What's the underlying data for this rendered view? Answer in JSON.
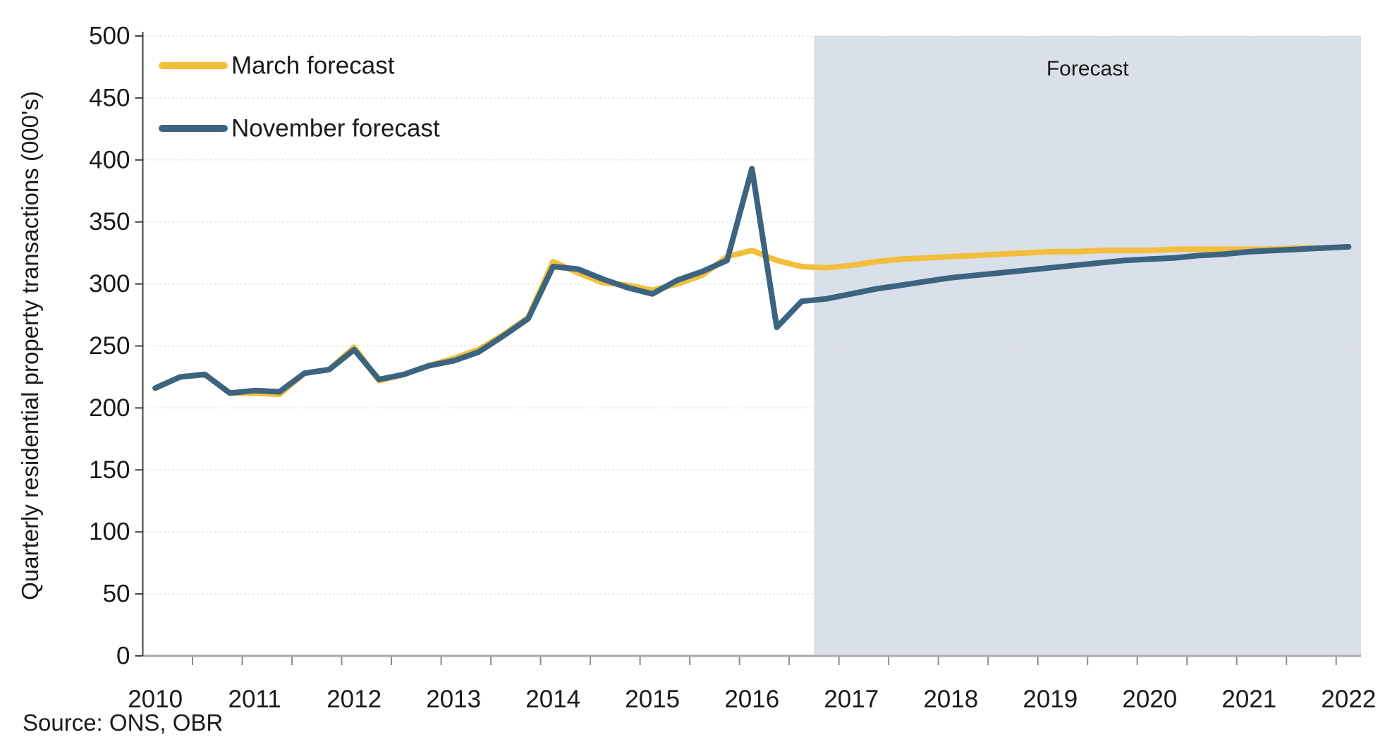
{
  "chart_data": {
    "type": "line",
    "title": "",
    "xlabel": "",
    "ylabel": "Quarterly residential property transactions (000's)",
    "ylim": [
      0,
      500
    ],
    "y_tick_step": 50,
    "y_tick_labels": [
      "0",
      "50",
      "100",
      "150",
      "200",
      "250",
      "300",
      "350",
      "400",
      "450",
      "500"
    ],
    "x_year_labels": [
      "2010",
      "2011",
      "2012",
      "2013",
      "2014",
      "2015",
      "2016",
      "2017",
      "2018",
      "2019",
      "2020",
      "2021",
      "2022"
    ],
    "x": [
      2010.0,
      2010.25,
      2010.5,
      2010.75,
      2011.0,
      2011.25,
      2011.5,
      2011.75,
      2012.0,
      2012.25,
      2012.5,
      2012.75,
      2013.0,
      2013.25,
      2013.5,
      2013.75,
      2014.0,
      2014.25,
      2014.5,
      2014.75,
      2015.0,
      2015.25,
      2015.5,
      2015.75,
      2016.0,
      2016.25,
      2016.5,
      2016.75,
      2017.0,
      2017.25,
      2017.5,
      2017.75,
      2018.0,
      2018.25,
      2018.5,
      2018.75,
      2019.0,
      2019.25,
      2019.5,
      2019.75,
      2020.0,
      2020.25,
      2020.5,
      2020.75,
      2021.0,
      2021.25,
      2021.5,
      2021.75,
      2022.0
    ],
    "series": [
      {
        "name": "March forecast",
        "color": "#f2be3c",
        "values": [
          216,
          225,
          227,
          212,
          212,
          211,
          228,
          231,
          249,
          222,
          227,
          234,
          240,
          247,
          259,
          273,
          318,
          309,
          301,
          299,
          295,
          300,
          307,
          322,
          327,
          319,
          314,
          313,
          315,
          318,
          320,
          321,
          322,
          323,
          324,
          325,
          326,
          326,
          327,
          327,
          327,
          328,
          328,
          328,
          328,
          328,
          329,
          329,
          330
        ]
      },
      {
        "name": "November forecast",
        "color": "#3c6480",
        "values": [
          216,
          225,
          227,
          212,
          214,
          213,
          228,
          231,
          247,
          223,
          227,
          234,
          238,
          245,
          258,
          272,
          314,
          312,
          304,
          297,
          292,
          303,
          310,
          319,
          393,
          265,
          286,
          288,
          292,
          296,
          299,
          302,
          305,
          307,
          309,
          311,
          313,
          315,
          317,
          319,
          320,
          321,
          323,
          324,
          326,
          327,
          328,
          329,
          330
        ]
      }
    ],
    "forecast_band": {
      "label": "Forecast",
      "start": "2016 Q4",
      "start_category_index": 27,
      "end": "2022 Q1",
      "color": "#dae0e9"
    },
    "grid": "horizontal dashed",
    "legend_position": "top-left",
    "source": "Source: ONS, OBR"
  },
  "style_colors": {
    "text": "#1a1a1a",
    "gridline": "#d8d8d8",
    "x_axis_line": "#a9a9a9",
    "x_tick": "#8c8c8c",
    "y_axis_line": "#404040",
    "background": "#ffffff"
  }
}
